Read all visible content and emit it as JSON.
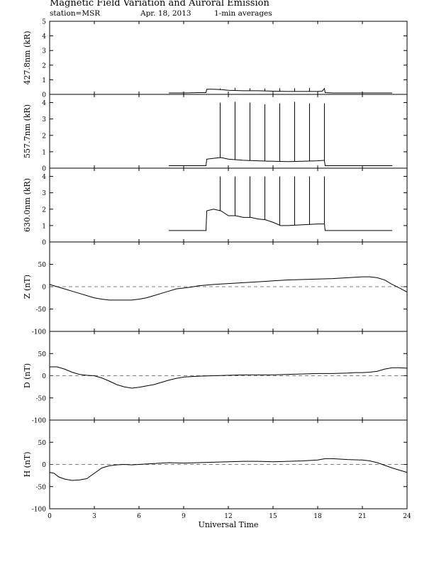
{
  "header": {
    "title": "Magnetic Field Variation and Auroral Emission",
    "station": "station=MSR",
    "date": "Apr. 18, 2013",
    "averaging": "1-min averages"
  },
  "chart_data": {
    "type": "line",
    "x": {
      "label": "Universal Time",
      "range": [
        0,
        24
      ],
      "ticks": [
        0,
        3,
        6,
        9,
        12,
        15,
        18,
        21,
        24
      ]
    },
    "panels": [
      {
        "id": "427",
        "ylabel": "427.8nm (kR)",
        "ylim": [
          0,
          5
        ],
        "yticks": [
          0,
          1,
          2,
          3,
          4,
          5
        ],
        "zero_line": false,
        "series": [
          {
            "x": [
              8.0,
              9.0,
              10.0,
              10.5,
              10.55,
              11.0,
              11.5,
              12.0,
              13.0,
              14.0,
              15.0,
              16.0,
              17.0,
              18.0,
              18.3,
              18.45,
              18.5,
              19.0,
              20.0,
              21.0,
              22.0,
              23.0
            ],
            "y": [
              0.1,
              0.1,
              0.12,
              0.12,
              0.35,
              0.35,
              0.33,
              0.28,
              0.25,
              0.25,
              0.22,
              0.2,
              0.2,
              0.2,
              0.22,
              0.4,
              0.12,
              0.1,
              0.1,
              0.1,
              0.1,
              0.1
            ]
          }
        ],
        "spikes": {
          "x": [
            11.45,
            12.45,
            13.45,
            14.45,
            15.45,
            16.45,
            17.45
          ],
          "y": [
            0.4,
            0.45,
            0.42,
            0.4,
            0.42,
            0.42,
            0.45
          ]
        }
      },
      {
        "id": "557",
        "ylabel": "557.7nm (kR)",
        "ylim": [
          0,
          4.5
        ],
        "yticks": [
          0,
          1,
          2,
          3,
          4
        ],
        "zero_line": false,
        "series": [
          {
            "x": [
              8.0,
              9.0,
              10.0,
              10.5,
              10.55,
              11.0,
              11.5,
              12.0,
              13.0,
              14.0,
              15.0,
              16.0,
              17.0,
              18.0,
              18.45,
              18.5,
              19.0,
              20.0,
              21.0,
              22.0,
              23.0
            ],
            "y": [
              0.15,
              0.15,
              0.15,
              0.15,
              0.55,
              0.6,
              0.65,
              0.55,
              0.48,
              0.45,
              0.42,
              0.4,
              0.42,
              0.45,
              0.48,
              0.15,
              0.15,
              0.15,
              0.15,
              0.15,
              0.15
            ]
          }
        ],
        "spikes": {
          "x": [
            11.45,
            12.45,
            13.45,
            14.45,
            15.45,
            16.45,
            17.45,
            18.45
          ],
          "y": [
            4.0,
            4.05,
            4.0,
            3.9,
            3.95,
            4.05,
            3.95,
            3.95
          ]
        }
      },
      {
        "id": "630",
        "ylabel": "630.0nm (kR)",
        "ylim": [
          0,
          4.5
        ],
        "yticks": [
          0,
          1,
          2,
          3,
          4
        ],
        "zero_line": false,
        "series": [
          {
            "x": [
              8.0,
              9.0,
              10.0,
              10.5,
              10.55,
              11.0,
              11.5,
              12.0,
              12.5,
              13.0,
              13.5,
              14.0,
              14.5,
              15.0,
              15.5,
              16.0,
              17.0,
              18.0,
              18.45,
              18.5,
              19.0,
              20.0,
              21.0,
              22.0,
              23.0
            ],
            "y": [
              0.7,
              0.7,
              0.7,
              0.7,
              1.9,
              2.0,
              1.9,
              1.6,
              1.6,
              1.5,
              1.5,
              1.4,
              1.35,
              1.2,
              1.0,
              1.0,
              1.05,
              1.1,
              1.1,
              0.7,
              0.7,
              0.7,
              0.7,
              0.7,
              0.7
            ]
          }
        ],
        "spikes": {
          "x": [
            11.45,
            12.45,
            13.45,
            14.45,
            15.45,
            16.45,
            17.45,
            18.45
          ],
          "y": [
            4.0,
            4.0,
            4.0,
            4.0,
            4.0,
            4.0,
            4.0,
            4.0
          ]
        }
      },
      {
        "id": "Z",
        "ylabel": "Z (nT)",
        "ylim": [
          -100,
          100
        ],
        "yticks": [
          -100,
          -50,
          0,
          50
        ],
        "zero_line": true,
        "series": [
          {
            "x": [
              0,
              0.5,
              1,
              1.5,
              2,
              2.5,
              3,
              3.5,
              4,
              4.5,
              5,
              5.5,
              6,
              6.5,
              7,
              7.5,
              8,
              8.5,
              9,
              9.5,
              10,
              11,
              12,
              13,
              14,
              15,
              16,
              17,
              18,
              19,
              20,
              20.5,
              21,
              21.5,
              22,
              22.5,
              23,
              23.5,
              24
            ],
            "y": [
              5,
              0,
              -5,
              -10,
              -15,
              -20,
              -25,
              -28,
              -30,
              -30,
              -30,
              -30,
              -28,
              -25,
              -20,
              -15,
              -10,
              -5,
              -3,
              -1,
              2,
              5,
              7,
              9,
              11,
              13,
              15,
              16,
              17,
              18,
              20,
              21,
              22,
              22,
              20,
              15,
              5,
              -3,
              -12
            ]
          }
        ]
      },
      {
        "id": "D",
        "ylabel": "D (nT)",
        "ylim": [
          -100,
          100
        ],
        "yticks": [
          -100,
          -50,
          0,
          50
        ],
        "zero_line": true,
        "series": [
          {
            "x": [
              0,
              0.5,
              1,
              1.5,
              2,
              2.5,
              3,
              3.5,
              4,
              4.5,
              5,
              5.5,
              6,
              6.5,
              7,
              7.5,
              8,
              8.5,
              9,
              9.5,
              10,
              11,
              12,
              13,
              14,
              15,
              16,
              17,
              18,
              19,
              20,
              20.5,
              21,
              21.5,
              22,
              22.5,
              23,
              23.5,
              24
            ],
            "y": [
              20,
              20,
              15,
              8,
              3,
              1,
              0,
              -5,
              -12,
              -20,
              -25,
              -28,
              -26,
              -23,
              -20,
              -15,
              -10,
              -6,
              -3,
              -2,
              -1,
              0,
              1,
              2,
              2,
              2,
              3,
              4,
              5,
              5,
              6,
              7,
              7,
              8,
              10,
              15,
              18,
              18,
              17
            ]
          }
        ]
      },
      {
        "id": "H",
        "ylabel": "H (nT)",
        "ylim": [
          -100,
          100
        ],
        "yticks": [
          -100,
          -50,
          0,
          50
        ],
        "zero_line": true,
        "series": [
          {
            "x": [
              0,
              0.3,
              0.6,
              1,
              1.5,
              2,
              2.5,
              3,
              3.5,
              4,
              4.5,
              5,
              5.5,
              6,
              6.5,
              7,
              8,
              9,
              10,
              11,
              12,
              13,
              14,
              15,
              16,
              17,
              18,
              18.5,
              19,
              19.5,
              20,
              21,
              21.5,
              22,
              22.5,
              23,
              23.5,
              24
            ],
            "y": [
              -18,
              -20,
              -28,
              -33,
              -36,
              -35,
              -32,
              -20,
              -8,
              -3,
              -1,
              0,
              -1,
              0,
              1,
              2,
              4,
              3,
              4,
              5,
              6,
              7,
              7,
              6,
              7,
              8,
              10,
              13,
              13,
              12,
              11,
              10,
              8,
              4,
              -2,
              -8,
              -13,
              -18
            ]
          }
        ]
      }
    ]
  }
}
